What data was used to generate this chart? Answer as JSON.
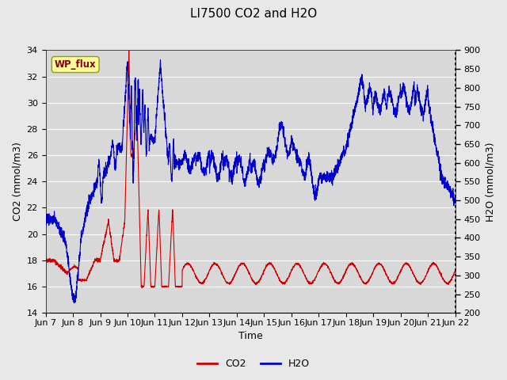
{
  "title": "LI7500 CO2 and H2O",
  "xlabel": "Time",
  "ylabel_left": "CO2 (mmol/m3)",
  "ylabel_right": "H2O (mmol/m3)",
  "ylim_left": [
    14,
    34
  ],
  "ylim_right": [
    200,
    900
  ],
  "yticks_left": [
    14,
    16,
    18,
    20,
    22,
    24,
    26,
    28,
    30,
    32,
    34
  ],
  "yticks_right": [
    200,
    250,
    300,
    350,
    400,
    450,
    500,
    550,
    600,
    650,
    700,
    750,
    800,
    850,
    900
  ],
  "xlim": [
    0,
    15
  ],
  "xtick_labels": [
    "Jun 7",
    "Jun 8",
    "Jun 9",
    "Jun 10",
    "Jun 11",
    "Jun 12",
    "Jun 13",
    "Jun 14",
    "Jun 15",
    "Jun 16",
    "Jun 17",
    "Jun 18",
    "Jun 19",
    "Jun 20",
    "Jun 21",
    "Jun 22"
  ],
  "co2_color": "#cc0000",
  "h2o_color": "#0000cc",
  "fig_bg_color": "#e8e8e8",
  "plot_bg_color": "#d8d8d8",
  "grid_color": "#ffffff",
  "wp_flux_text": "WP_flux",
  "wp_flux_bg": "#ffff99",
  "wp_flux_border": "#999900",
  "wp_flux_text_color": "#880000",
  "legend_co2": "CO2",
  "legend_h2o": "H2O",
  "title_fontsize": 11,
  "label_fontsize": 9,
  "tick_fontsize": 8
}
